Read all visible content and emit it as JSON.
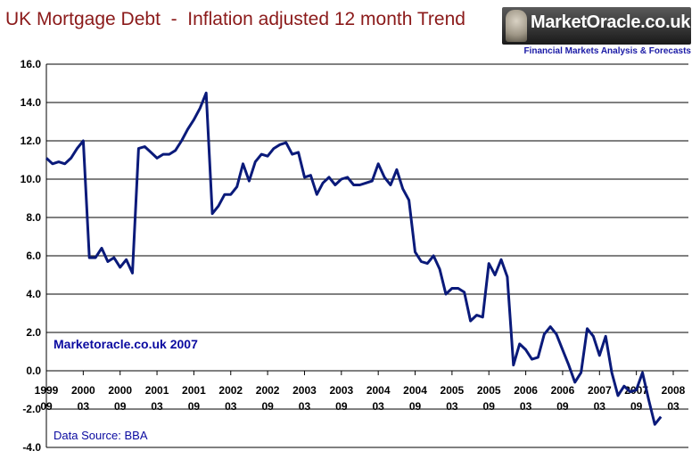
{
  "chart_data": {
    "type": "line",
    "title": "UK Mortgage Debt  -  Inflation adjusted 12 month Trend",
    "xlabel": "",
    "ylabel": "",
    "ylim": [
      -4.0,
      16.0
    ],
    "yticks": [
      "16.0",
      "14.0",
      "12.0",
      "10.0",
      "8.0",
      "6.0",
      "4.0",
      "2.0",
      "0.0",
      "-2.0",
      "-4.0"
    ],
    "xlim": [
      "1999-09",
      "2008-03"
    ],
    "xticks": [
      {
        "year": "1999",
        "month": "09",
        "x": "1999-09"
      },
      {
        "year": "2000",
        "month": "03",
        "x": "2000-03"
      },
      {
        "year": "2000",
        "month": "09",
        "x": "2000-09"
      },
      {
        "year": "2001",
        "month": "03",
        "x": "2001-03"
      },
      {
        "year": "2001",
        "month": "09",
        "x": "2001-09"
      },
      {
        "year": "2002",
        "month": "03",
        "x": "2002-03"
      },
      {
        "year": "2002",
        "month": "09",
        "x": "2002-09"
      },
      {
        "year": "2003",
        "month": "03",
        "x": "2003-03"
      },
      {
        "year": "2003",
        "month": "09",
        "x": "2003-09"
      },
      {
        "year": "2004",
        "month": "03",
        "x": "2004-03"
      },
      {
        "year": "2004",
        "month": "09",
        "x": "2004-09"
      },
      {
        "year": "2005",
        "month": "03",
        "x": "2005-03"
      },
      {
        "year": "2005",
        "month": "09",
        "x": "2005-09"
      },
      {
        "year": "2006",
        "month": "03",
        "x": "2006-03"
      },
      {
        "year": "2006",
        "month": "09",
        "x": "2006-09"
      },
      {
        "year": "2007",
        "month": "03",
        "x": "2007-03"
      },
      {
        "year": "2007",
        "month": "09",
        "x": "2007-09"
      },
      {
        "year": "2008",
        "month": "03",
        "x": "2008-03"
      }
    ],
    "grid": "horizontal",
    "line_color": "#0a1a7a",
    "series": [
      {
        "x": [
          "1999-09",
          "1999-10",
          "1999-11",
          "1999-12",
          "2000-01",
          "2000-02",
          "2000-03",
          "2000-04",
          "2000-05",
          "2000-06",
          "2000-07",
          "2000-08",
          "2000-09",
          "2000-10",
          "2000-11",
          "2000-12",
          "2001-01",
          "2001-02",
          "2001-03",
          "2001-04",
          "2001-05",
          "2001-06",
          "2001-07",
          "2001-08",
          "2001-09",
          "2001-10",
          "2001-11",
          "2001-12",
          "2002-01",
          "2002-02",
          "2002-03",
          "2002-04",
          "2002-05",
          "2002-06",
          "2002-07",
          "2002-08",
          "2002-09",
          "2002-10",
          "2002-11",
          "2002-12",
          "2003-01",
          "2003-02",
          "2003-03",
          "2003-04",
          "2003-05",
          "2003-06",
          "2003-07",
          "2003-08",
          "2003-09",
          "2003-10",
          "2003-11",
          "2003-12",
          "2004-01",
          "2004-02",
          "2004-03",
          "2004-04",
          "2004-05",
          "2004-06",
          "2004-07",
          "2004-08",
          "2004-09",
          "2004-10",
          "2004-11",
          "2004-12",
          "2005-01",
          "2005-02",
          "2005-03",
          "2005-04",
          "2005-05",
          "2005-06",
          "2005-07",
          "2005-08",
          "2005-09",
          "2005-10",
          "2005-11",
          "2005-12",
          "2006-01",
          "2006-02",
          "2006-03",
          "2006-04",
          "2006-05",
          "2006-06",
          "2006-07",
          "2006-08",
          "2006-09",
          "2006-10",
          "2006-11",
          "2006-12",
          "2007-01",
          "2007-02",
          "2007-03",
          "2007-04",
          "2007-05",
          "2007-06",
          "2007-07",
          "2007-08",
          "2007-09",
          "2007-10",
          "2007-11",
          "2007-12",
          "2008-01"
        ],
        "values": [
          11.1,
          10.8,
          10.9,
          10.8,
          11.1,
          11.6,
          12.0,
          5.9,
          5.9,
          6.4,
          5.7,
          5.9,
          5.4,
          5.8,
          5.1,
          11.6,
          11.7,
          11.4,
          11.1,
          11.3,
          11.3,
          11.5,
          12.0,
          12.6,
          13.1,
          13.7,
          14.5,
          8.2,
          8.6,
          9.2,
          9.2,
          9.6,
          10.8,
          9.9,
          10.9,
          11.3,
          11.2,
          11.6,
          11.8,
          11.9,
          11.3,
          11.4,
          10.1,
          10.2,
          9.2,
          9.8,
          10.1,
          9.7,
          10.0,
          10.1,
          9.7,
          9.7,
          9.8,
          9.9,
          10.8,
          10.1,
          9.7,
          10.5,
          9.5,
          8.9,
          6.2,
          5.7,
          5.6,
          6.0,
          5.3,
          4.0,
          4.3,
          4.3,
          4.1,
          2.6,
          2.9,
          2.8,
          5.6,
          5.0,
          5.8,
          4.9,
          0.3,
          1.4,
          1.1,
          0.6,
          0.7,
          1.9,
          2.3,
          1.9,
          1.1,
          0.3,
          -0.6,
          -0.1,
          2.2,
          1.8,
          0.8,
          1.8,
          -0.1,
          -1.3,
          -0.8,
          -1.1,
          -1.0,
          -0.1,
          -1.5,
          -2.8,
          -2.4
        ]
      }
    ],
    "annotations": {
      "watermark": "Marketoracle.co.uk 2007",
      "source": "Data Source: BBA"
    }
  },
  "logo": {
    "brand": "MarketOracle.co.uk",
    "tagline": "Financial Markets Analysis & Forecasts",
    "figure_icon": "statue-figure-icon"
  }
}
